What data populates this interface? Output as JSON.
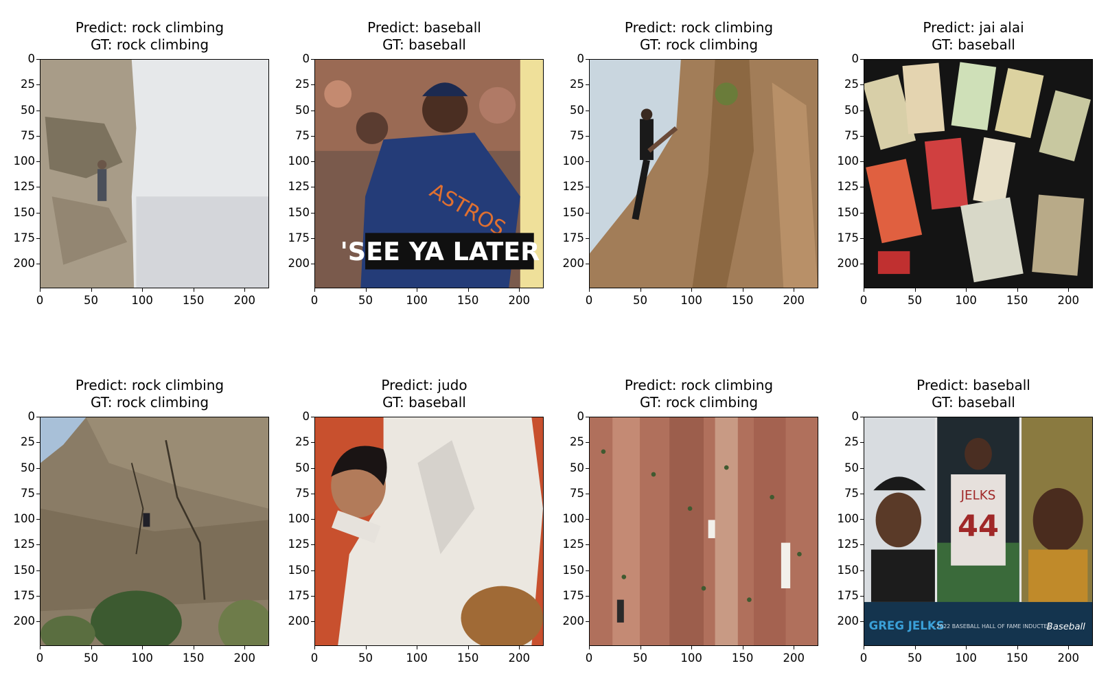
{
  "chart_data": [
    {
      "type": "image",
      "title_lines": [
        "Predict: rock climbing",
        "GT: rock climbing"
      ],
      "image": "climber-on-cliff-face",
      "xticks": [
        "0",
        "50",
        "100",
        "150",
        "200"
      ],
      "yticks": [
        "0",
        "25",
        "50",
        "75",
        "100",
        "125",
        "150",
        "175",
        "200"
      ],
      "xlim": [
        0,
        224
      ],
      "ylim": [
        224,
        0
      ]
    },
    {
      "type": "image",
      "title_lines": [
        "Predict: baseball",
        "GT: baseball"
      ],
      "image": "astros-player-see-ya-later",
      "caption": "'SEE YA LATER!'",
      "xticks": [
        "0",
        "50",
        "100",
        "150",
        "200"
      ],
      "yticks": [
        "0",
        "25",
        "50",
        "75",
        "100",
        "125",
        "150",
        "175",
        "200"
      ],
      "xlim": [
        0,
        224
      ],
      "ylim": [
        224,
        0
      ]
    },
    {
      "type": "image",
      "title_lines": [
        "Predict: rock climbing",
        "GT: rock climbing"
      ],
      "image": "woman-climbing-rock",
      "xticks": [
        "0",
        "50",
        "100",
        "150",
        "200"
      ],
      "yticks": [
        "0",
        "25",
        "50",
        "75",
        "100",
        "125",
        "150",
        "175",
        "200"
      ],
      "xlim": [
        0,
        224
      ],
      "ylim": [
        224,
        0
      ]
    },
    {
      "type": "image",
      "title_lines": [
        "Predict: jai alai",
        "GT: baseball"
      ],
      "image": "vintage-baseball-cards",
      "xticks": [
        "0",
        "50",
        "100",
        "150",
        "200"
      ],
      "yticks": [
        "0",
        "25",
        "50",
        "75",
        "100",
        "125",
        "150",
        "175",
        "200"
      ],
      "xlim": [
        0,
        224
      ],
      "ylim": [
        224,
        0
      ]
    },
    {
      "type": "image",
      "title_lines": [
        "Predict: rock climbing",
        "GT: rock climbing"
      ],
      "image": "climber-on-rock-wall-with-trees",
      "xticks": [
        "0",
        "50",
        "100",
        "150",
        "200"
      ],
      "yticks": [
        "0",
        "25",
        "50",
        "75",
        "100",
        "125",
        "150",
        "175",
        "200"
      ],
      "xlim": [
        0,
        224
      ],
      "ylim": [
        224,
        0
      ]
    },
    {
      "type": "image",
      "title_lines": [
        "Predict: judo",
        "GT: baseball"
      ],
      "image": "man-in-white-sweater-with-glove",
      "xticks": [
        "0",
        "50",
        "100",
        "150",
        "200"
      ],
      "yticks": [
        "0",
        "25",
        "50",
        "75",
        "100",
        "125",
        "150",
        "175",
        "200"
      ],
      "xlim": [
        0,
        224
      ],
      "ylim": [
        224,
        0
      ]
    },
    {
      "type": "image",
      "title_lines": [
        "Predict: rock climbing",
        "GT: rock climbing"
      ],
      "image": "indoor-climbing-wall",
      "xticks": [
        "0",
        "50",
        "100",
        "150",
        "200"
      ],
      "yticks": [
        "0",
        "25",
        "50",
        "75",
        "100",
        "125",
        "150",
        "175",
        "200"
      ],
      "xlim": [
        0,
        224
      ],
      "ylim": [
        224,
        0
      ]
    },
    {
      "type": "image",
      "title_lines": [
        "Predict: baseball",
        "GT: baseball"
      ],
      "image": "greg-jelks-hall-of-fame",
      "caption": "GREG JELKS",
      "sub_caption": "- 2022 BASEBALL HALL OF FAME INDUCTEE",
      "brand": "Baseball",
      "jersey_name": "JELKS",
      "jersey_number": "44",
      "xticks": [
        "0",
        "50",
        "100",
        "150",
        "200"
      ],
      "yticks": [
        "0",
        "25",
        "50",
        "75",
        "100",
        "125",
        "150",
        "175",
        "200"
      ],
      "xlim": [
        0,
        224
      ],
      "ylim": [
        224,
        0
      ]
    }
  ]
}
